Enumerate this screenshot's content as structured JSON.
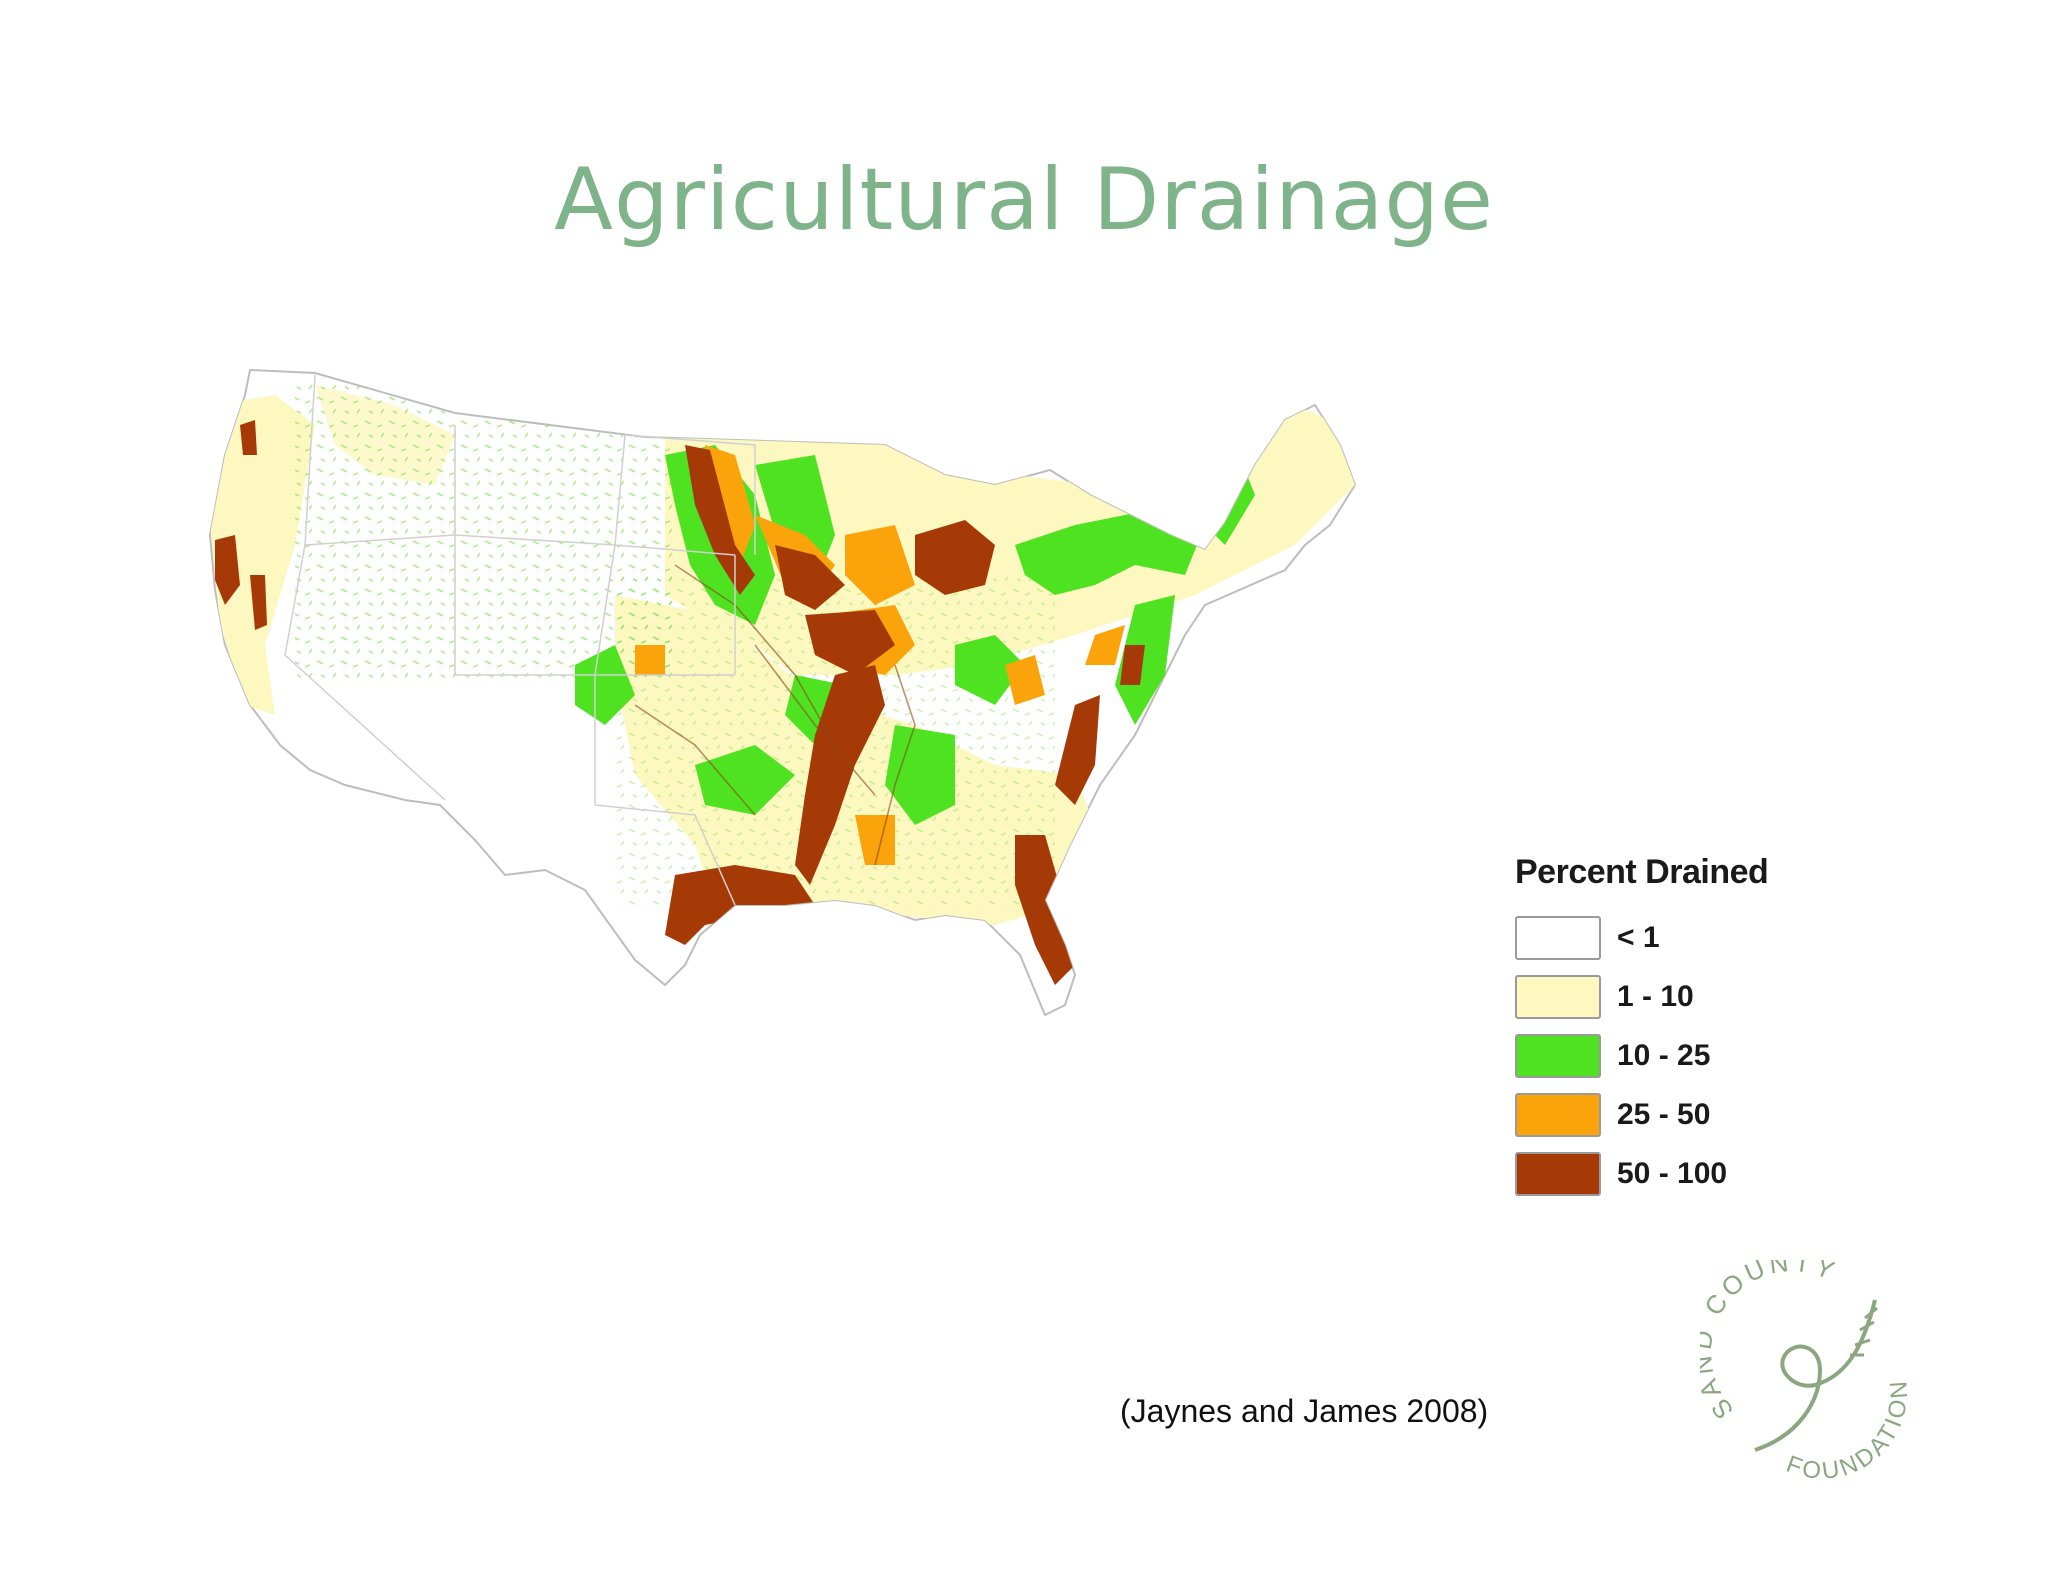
{
  "slide": {
    "title": "Agricultural Drainage",
    "citation": "(Jaynes and James 2008)"
  },
  "map": {
    "region": "Contiguous United States",
    "colors": {
      "background": "#ffffff",
      "state_border": "#c8c8c8"
    }
  },
  "legend": {
    "title": "Percent Drained",
    "items": [
      {
        "label": "< 1",
        "color": "#ffffff"
      },
      {
        "label": "1 - 10",
        "color": "#fdf8c0"
      },
      {
        "label": "10 - 25",
        "color": "#4ee221"
      },
      {
        "label": "25 - 50",
        "color": "#fba30b"
      },
      {
        "label": "50 - 100",
        "color": "#a63a06"
      }
    ]
  },
  "logo": {
    "text_top": "SAND COUNTY",
    "text_bottom": "FOUNDATION",
    "color": "#8aa780"
  }
}
